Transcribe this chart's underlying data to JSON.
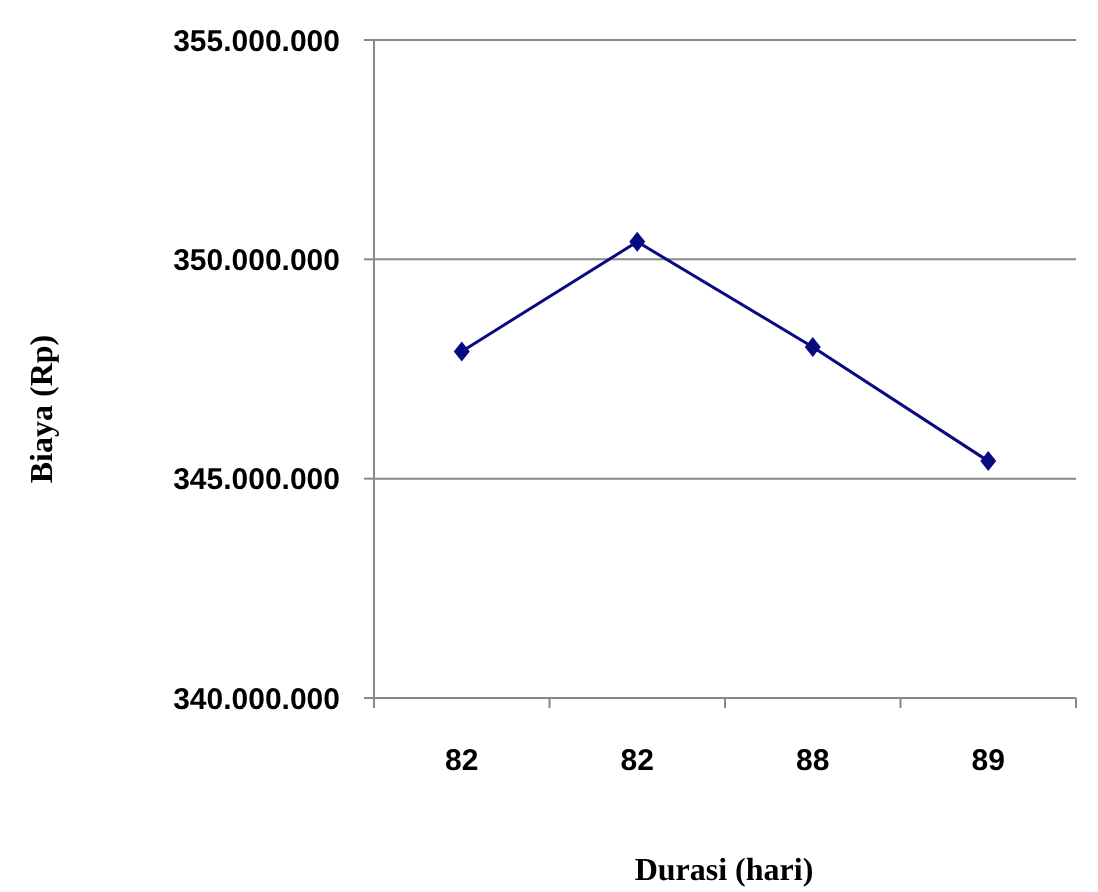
{
  "chart_data": {
    "type": "line",
    "xlabel": "Durasi (hari)",
    "ylabel": "Biaya (Rp)",
    "categories": [
      "82",
      "82",
      "88",
      "89"
    ],
    "series": [
      {
        "color": "#0a0a80",
        "values": [
          347900000,
          350400000,
          348000000,
          345400000
        ]
      }
    ],
    "ylim": [
      340000000,
      355000000
    ],
    "yticks": [
      {
        "value": 340000000,
        "label": "340.000.000"
      },
      {
        "value": 345000000,
        "label": "345.000.000"
      },
      {
        "value": 350000000,
        "label": "350.000.000"
      },
      {
        "value": 355000000,
        "label": "355.000.000"
      }
    ],
    "grid": "y",
    "marker": "diamond",
    "line_style": "solid"
  }
}
